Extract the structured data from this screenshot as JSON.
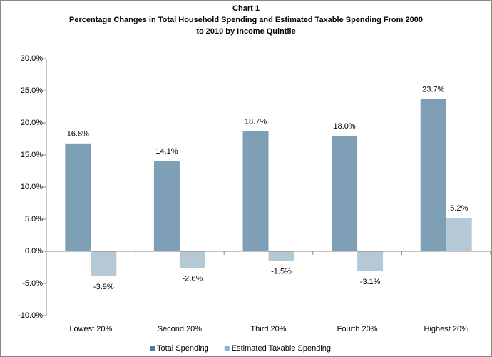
{
  "chart_data": {
    "type": "bar",
    "title": "Chart 1",
    "subtitle": [
      "Percentage Changes in Total Household Spending and Estimated Taxable Spending From 2000",
      "to 2010 by  Income Quintile"
    ],
    "categories": [
      "Lowest 20%",
      "Second 20%",
      "Third 20%",
      "Fourth 20%",
      "Highest 20%"
    ],
    "series": [
      {
        "name": "Total Spending",
        "color": "#7f9fb6",
        "legend_color": "#4a7ab0",
        "values": [
          16.8,
          14.1,
          18.7,
          18.0,
          23.7
        ],
        "value_labels": [
          "16.8%",
          "14.1%",
          "18.7%",
          "18.0%",
          "23.7%"
        ]
      },
      {
        "name": "Estimated Taxable Spending",
        "color": "#b4c8d6",
        "legend_color": "#93b1d3",
        "values": [
          -3.9,
          -2.6,
          -1.5,
          -3.1,
          5.2
        ],
        "value_labels": [
          "-3.9%",
          "-2.6%",
          "-1.5%",
          "-3.1%",
          "5.2%"
        ]
      }
    ],
    "ylim": [
      -10,
      30
    ],
    "yticks": [
      {
        "value": -10,
        "label": "-10.0%"
      },
      {
        "value": -5,
        "label": "-5.0%"
      },
      {
        "value": 0,
        "label": "0.0%"
      },
      {
        "value": 5,
        "label": "5.0%"
      },
      {
        "value": 10,
        "label": "10.0%"
      },
      {
        "value": 15,
        "label": "15.0%"
      },
      {
        "value": 20,
        "label": "20.0%"
      },
      {
        "value": 25,
        "label": "25.0%"
      },
      {
        "value": 30,
        "label": "30.0%"
      }
    ],
    "grid": false,
    "legend": "bottom"
  }
}
